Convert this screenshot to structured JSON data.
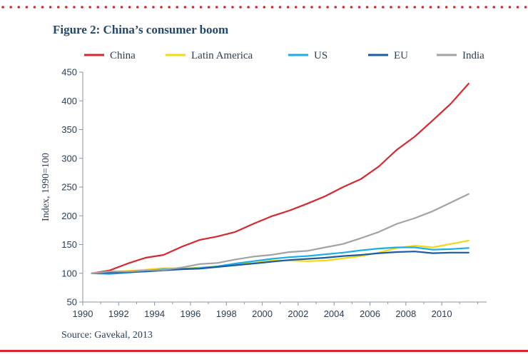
{
  "header": {
    "title": "Figure 2: China’s consumer boom"
  },
  "footer": {
    "source": "Source: Gavekal, 2013"
  },
  "colors": {
    "accent_red": "#d7282f",
    "axis": "#8a96a3"
  },
  "chart_data": {
    "type": "line",
    "title": "Figure 2: China’s consumer boom",
    "xlabel": "",
    "ylabel": "Index, 1990=100",
    "xlim": [
      1990,
      2012.5
    ],
    "ylim": [
      50,
      450
    ],
    "x_ticks": [
      1990,
      1992,
      1994,
      1996,
      1998,
      2000,
      2002,
      2004,
      2006,
      2008,
      2010
    ],
    "y_ticks": [
      50,
      100,
      150,
      200,
      250,
      300,
      350,
      400,
      450
    ],
    "grid": false,
    "legend_position": "top",
    "x": [
      1990.5,
      1991.5,
      1992.5,
      1993.5,
      1994.5,
      1995.5,
      1996.5,
      1997.5,
      1998.5,
      1999.5,
      2000.5,
      2001.5,
      2002.5,
      2003.5,
      2004.5,
      2005.5,
      2006.5,
      2007.5,
      2008.5,
      2009.5,
      2010.5,
      2011.5
    ],
    "series": [
      {
        "name": "China",
        "color": "#d7282f",
        "values": [
          100,
          105,
          117,
          127,
          132,
          146,
          158,
          164,
          172,
          186,
          199,
          209,
          221,
          234,
          250,
          264,
          286,
          315,
          338,
          366,
          395,
          430
        ]
      },
      {
        "name": "Latin America",
        "color": "#f5d80f",
        "values": [
          100,
          103,
          104,
          106,
          109,
          108,
          110,
          112,
          116,
          118,
          122,
          122,
          121,
          122,
          126,
          130,
          136,
          144,
          148,
          145,
          151,
          157
        ]
      },
      {
        "name": "US",
        "color": "#19aee8",
        "values": [
          100,
          99,
          101,
          104,
          107,
          108,
          109,
          112,
          117,
          121,
          125,
          128,
          130,
          133,
          136,
          140,
          143,
          145,
          145,
          141,
          142,
          144
        ]
      },
      {
        "name": "EU",
        "color": "#1a5ca3",
        "values": [
          100,
          101,
          102,
          103,
          105,
          107,
          108,
          111,
          114,
          117,
          120,
          123,
          125,
          127,
          130,
          132,
          135,
          137,
          138,
          135,
          136,
          136
        ]
      },
      {
        "name": "India",
        "color": "#a3a3a3",
        "values": [
          100,
          103,
          103,
          105,
          106,
          110,
          116,
          118,
          124,
          129,
          132,
          137,
          139,
          145,
          151,
          161,
          172,
          186,
          196,
          208,
          223,
          238
        ]
      }
    ]
  }
}
